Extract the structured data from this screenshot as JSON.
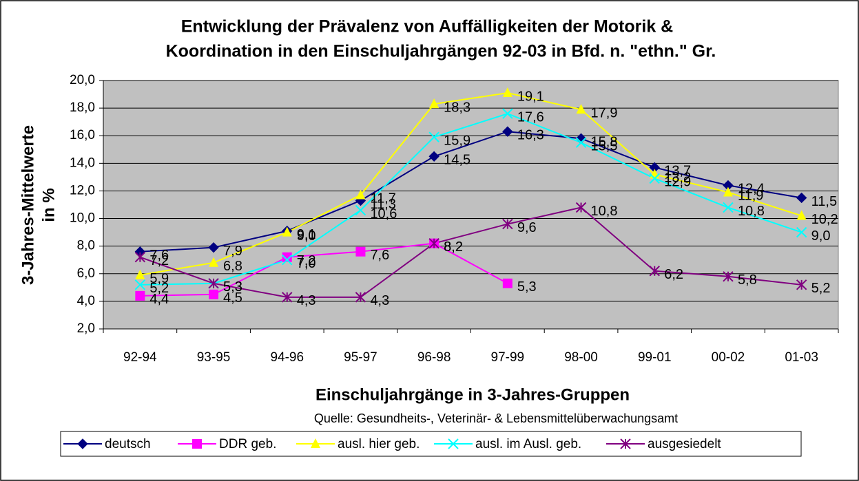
{
  "chart_data": {
    "type": "line",
    "title": [
      "Entwicklung der Prävalenz von Auffälligkeiten der Motorik &",
      "Koordination in den Einschuljahrgängen 92-03 in Bfd. n. \"ethn.\" Gr."
    ],
    "ylabel": [
      "3-Jahres-Mittelwerte",
      "in %"
    ],
    "xlabel": "Einschuljahrgänge in 3-Jahres-Gruppen",
    "source": "Quelle: Gesundheits-, Veterinär- & Lebensmittelüberwachungsamt",
    "categories": [
      "92-94",
      "93-95",
      "94-96",
      "95-97",
      "96-98",
      "97-99",
      "98-00",
      "99-01",
      "00-02",
      "01-03"
    ],
    "ylim": [
      2,
      20
    ],
    "yticks": [
      {
        "value": 2,
        "label": "2,0"
      },
      {
        "value": 4,
        "label": "4,0"
      },
      {
        "value": 6,
        "label": "6,0"
      },
      {
        "value": 8,
        "label": "8,0"
      },
      {
        "value": 10,
        "label": "10,0"
      },
      {
        "value": 12,
        "label": "12,0"
      },
      {
        "value": 14,
        "label": "14,0"
      },
      {
        "value": 16,
        "label": "16,0"
      },
      {
        "value": 18,
        "label": "18,0"
      },
      {
        "value": 20,
        "label": "20,0"
      }
    ],
    "grid": true,
    "legend": "bottom",
    "series": [
      {
        "name": "deutsch",
        "color": "#000080",
        "marker": "diamond",
        "values": [
          7.6,
          7.9,
          9.1,
          11.3,
          14.5,
          16.3,
          15.8,
          13.7,
          12.4,
          11.5
        ],
        "value_labels": [
          "7,6",
          "7,9",
          "9,1",
          "11,3",
          "14,5",
          "16,3",
          "15,8",
          "13,7",
          "12,4",
          "11,5"
        ]
      },
      {
        "name": "DDR geb.",
        "color": "#ff00ff",
        "marker": "square",
        "values": [
          4.4,
          4.5,
          7.2,
          7.6,
          8.2,
          5.3,
          null,
          null,
          null,
          null
        ],
        "value_labels": [
          "4,4",
          "4,5",
          "7,2",
          "7,6",
          "8,2",
          "5,3",
          null,
          null,
          null,
          null
        ]
      },
      {
        "name": "ausl. hier geb.",
        "color": "#ffff00",
        "marker": "triangle",
        "values": [
          5.9,
          6.8,
          9.0,
          11.7,
          18.3,
          19.1,
          17.9,
          13.2,
          11.9,
          10.2
        ],
        "value_labels": [
          "5,9",
          "6,8",
          "9,0",
          "11,7",
          "18,3",
          "19,1",
          "17,9",
          "13,2",
          "11,9",
          "10,2"
        ]
      },
      {
        "name": "ausl. im Ausl. geb.",
        "color": "#00ffff",
        "marker": "x",
        "values": [
          5.2,
          5.3,
          7.0,
          10.6,
          15.9,
          17.6,
          15.5,
          12.9,
          10.8,
          9.0
        ],
        "value_labels": [
          "5,2",
          "5,3",
          "7,0",
          "10,6",
          "15,9",
          "17,6",
          "15,5",
          "12,9",
          "10,8",
          "9,0"
        ]
      },
      {
        "name": "ausgesiedelt",
        "color": "#800080",
        "marker": "star",
        "values": [
          7.2,
          5.3,
          4.3,
          4.3,
          8.2,
          9.6,
          10.8,
          6.2,
          5.8,
          5.2
        ],
        "value_labels": [
          "7,2",
          "5,3",
          "4,3",
          "4,3",
          "8,2",
          "9,6",
          "10,8",
          "6,2",
          "5,8",
          "5,2"
        ]
      }
    ]
  }
}
